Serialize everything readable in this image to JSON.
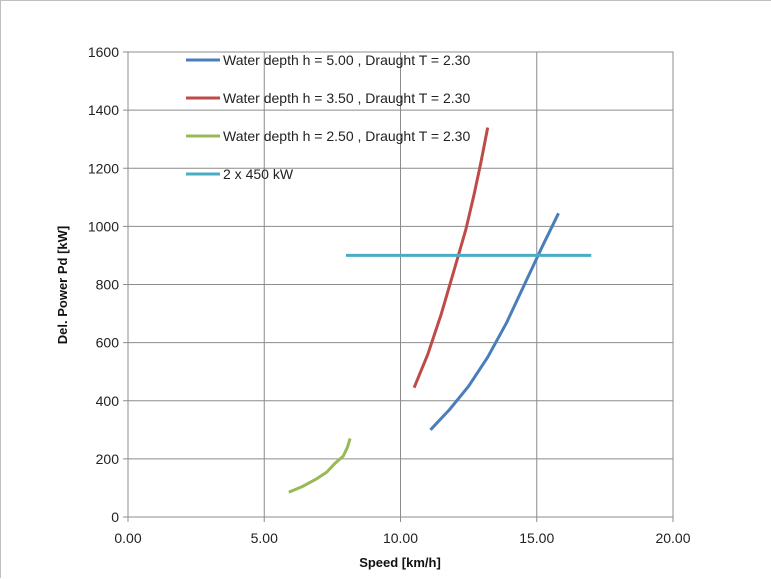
{
  "chart_data": {
    "type": "line",
    "title": "",
    "xlabel": "Speed [km/h]",
    "ylabel": "Del. Power Pd [kW]",
    "xlim": [
      0,
      20
    ],
    "ylim": [
      0,
      1600
    ],
    "xticks": [
      0,
      5,
      10,
      15,
      20
    ],
    "xtick_labels": [
      "0.00",
      "5.00",
      "10.00",
      "15.00",
      "20.00"
    ],
    "yticks": [
      0,
      200,
      400,
      600,
      800,
      1000,
      1200,
      1400,
      1600
    ],
    "ytick_labels": [
      "0",
      "200",
      "400",
      "600",
      "800",
      "1000",
      "1200",
      "1400",
      "1600"
    ],
    "grid": true,
    "legend_position": "top-left inside plot",
    "series": [
      {
        "name": "Water depth h = 5.00 , Draught T = 2.30",
        "color": "#4a7ebb",
        "x": [
          11.1,
          11.8,
          12.5,
          13.2,
          13.9,
          14.6,
          15.2,
          15.8
        ],
        "y": [
          300,
          370,
          450,
          550,
          670,
          810,
          930,
          1045
        ]
      },
      {
        "name": "Water depth h = 3.50 , Draught T = 2.30",
        "color": "#be4b48",
        "x": [
          10.5,
          11.0,
          11.5,
          12.0,
          12.4,
          12.7,
          12.95,
          13.2
        ],
        "y": [
          445,
          560,
          700,
          860,
          990,
          1110,
          1220,
          1340
        ]
      },
      {
        "name": "Water depth h = 2.50 , Draught T = 2.30",
        "color": "#98b954",
        "x": [
          5.9,
          6.4,
          6.9,
          7.3,
          7.6,
          7.9,
          8.05,
          8.15
        ],
        "y": [
          85,
          105,
          130,
          155,
          185,
          210,
          240,
          270
        ]
      },
      {
        "name": "2 x 450 kW",
        "color": "#4bacc6",
        "x": [
          8.0,
          17.0
        ],
        "y": [
          900,
          900
        ]
      }
    ]
  }
}
